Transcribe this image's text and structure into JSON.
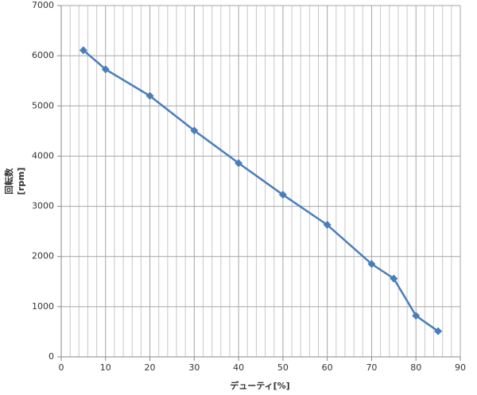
{
  "chart_data": {
    "type": "line",
    "x_label": "デューティ[%]",
    "y_label": [
      "回転数",
      "[rpm]"
    ],
    "x": [
      5,
      10,
      20,
      30,
      40,
      50,
      60,
      70,
      75,
      80,
      85
    ],
    "series": [
      {
        "color": "#4a7ebb",
        "values": [
          6110,
          5730,
          5200,
          4510,
          3860,
          3230,
          2630,
          1850,
          1560,
          820,
          510
        ]
      }
    ],
    "xlim": [
      0,
      90
    ],
    "xticks": [
      0,
      10,
      20,
      30,
      40,
      50,
      60,
      70,
      80,
      90
    ],
    "x_minor_grid": [
      2,
      4,
      6,
      8,
      12,
      14,
      16,
      18,
      22,
      24,
      26,
      28,
      32,
      34,
      36,
      38,
      42,
      44,
      46,
      48,
      52,
      54,
      56,
      58,
      62,
      64,
      66,
      68,
      72,
      74,
      76,
      78,
      82,
      84,
      86,
      88
    ],
    "ylim": [
      0,
      7000
    ],
    "yticks": [
      0,
      1000,
      2000,
      3000,
      4000,
      5000,
      6000,
      7000
    ],
    "grid": true
  }
}
